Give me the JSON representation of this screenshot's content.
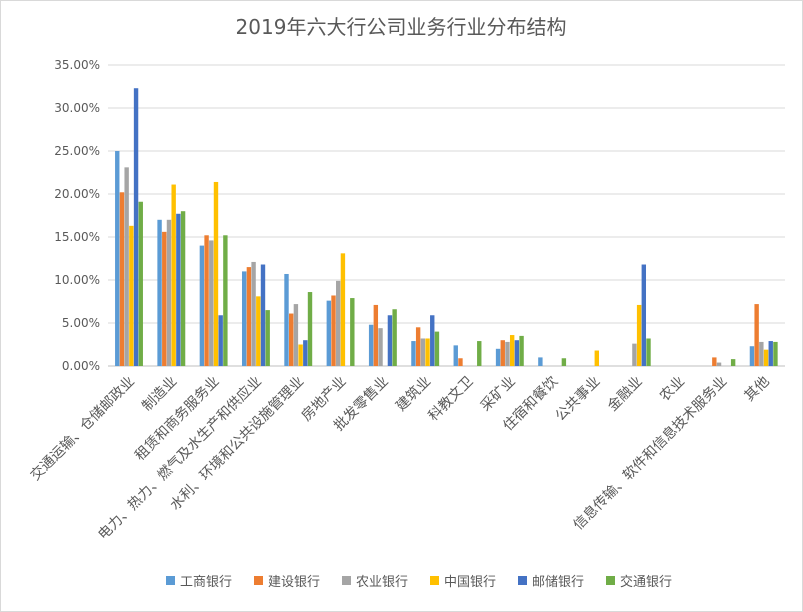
{
  "chart_data": {
    "type": "bar",
    "title": "2019年六大行公司业务行业分布结构",
    "xlabel": "",
    "ylabel": "",
    "ylim": [
      0,
      0.35
    ],
    "y_ticks": [
      "0.00%",
      "5.00%",
      "10.00%",
      "15.00%",
      "20.00%",
      "25.00%",
      "30.00%",
      "35.00%"
    ],
    "grid": "horizontal",
    "legend_position": "bottom",
    "categories": [
      "交通运输、仓储邮政业",
      "制造业",
      "租赁和商务服务业",
      "电力、热力、燃气及水生产和供应业",
      "水利、环境和公共设施管理业",
      "房地产业",
      "批发零售业",
      "建筑业",
      "科教文卫",
      "采矿业",
      "住宿和餐饮",
      "公共事业",
      "金融业",
      "农业",
      "信息传输、软件和信息技术服务业",
      "其他"
    ],
    "series": [
      {
        "name": "工商银行",
        "color": "#5b9bd5",
        "values": [
          0.25,
          0.17,
          0.14,
          0.11,
          0.107,
          0.076,
          0.048,
          0.029,
          0.024,
          0.02,
          0.01,
          0,
          0,
          0,
          0,
          0.023
        ]
      },
      {
        "name": "建设银行",
        "color": "#ed7d31",
        "values": [
          0.202,
          0.156,
          0.152,
          0.115,
          0.061,
          0.082,
          0.071,
          0.045,
          0.009,
          0.03,
          0,
          0,
          0,
          0,
          0.01,
          0.072
        ]
      },
      {
        "name": "农业银行",
        "color": "#a5a5a5",
        "values": [
          0.231,
          0.17,
          0.146,
          0.121,
          0.072,
          0.099,
          0.044,
          0.032,
          0,
          0.028,
          0,
          0,
          0.026,
          0,
          0.004,
          0.028
        ]
      },
      {
        "name": "中国银行",
        "color": "#ffc000",
        "values": [
          0.163,
          0.211,
          0.214,
          0.081,
          0.025,
          0.131,
          0,
          0.032,
          0,
          0.036,
          0,
          0.018,
          0.071,
          0,
          0,
          0.019
        ]
      },
      {
        "name": "邮储银行",
        "color": "#4472c4",
        "values": [
          0.323,
          0.177,
          0.059,
          0.118,
          0.03,
          0,
          0.059,
          0.059,
          0,
          0.03,
          0,
          0,
          0.118,
          0,
          0,
          0.029
        ]
      },
      {
        "name": "交通银行",
        "color": "#70ad47",
        "values": [
          0.191,
          0.18,
          0.152,
          0.065,
          0.086,
          0.079,
          0.066,
          0.04,
          0.029,
          0.035,
          0.009,
          0,
          0.032,
          0,
          0.008,
          0.028
        ]
      }
    ]
  }
}
